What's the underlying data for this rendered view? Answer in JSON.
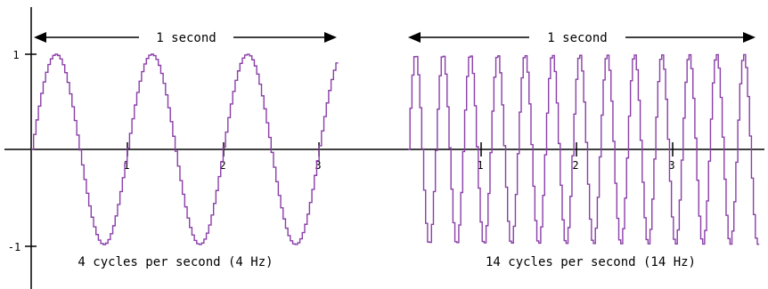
{
  "left_panel": {
    "span_label": "1 second",
    "caption": "4 cycles per second (4 Hz)",
    "cycles": 4,
    "y_ticks": [
      "1",
      "-1"
    ],
    "x_ticks": [
      "1",
      "2",
      "3"
    ]
  },
  "right_panel": {
    "span_label": "1 second",
    "caption": "14 cycles per second (14 Hz)",
    "cycles": 14,
    "x_ticks": [
      "1",
      "2",
      "3"
    ]
  },
  "colors": {
    "wave": "#8a3fa8",
    "axis": "#000000"
  }
}
